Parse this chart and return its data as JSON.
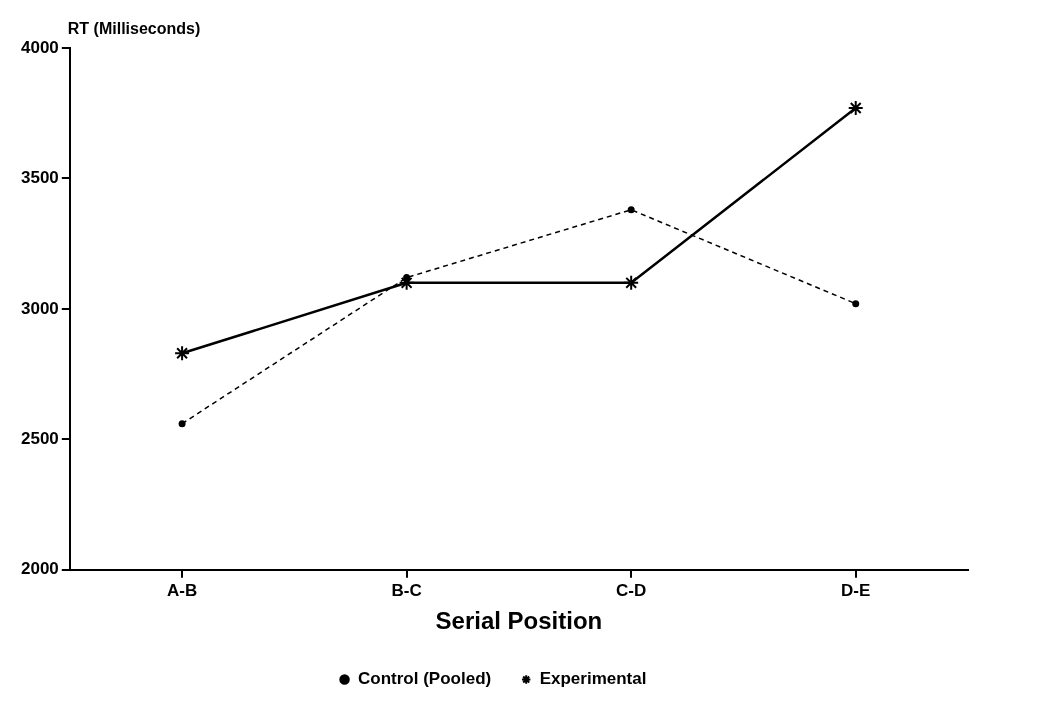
{
  "chart_data": {
    "type": "line",
    "xlabel": "Serial Position",
    "ylabel": "RT (Milliseconds)",
    "categories": [
      "A-B",
      "B-C",
      "C-D",
      "D-E"
    ],
    "series": [
      {
        "name": "Control (Pooled)",
        "color": "#000000",
        "values": [
          2560,
          3120,
          3380,
          3020
        ],
        "marker": "circle",
        "line_style": "dashed"
      },
      {
        "name": "Experimental",
        "color": "#000000",
        "values": [
          2830,
          3100,
          3100,
          3770
        ],
        "marker": "cross",
        "line_style": "solid"
      }
    ],
    "ylim": [
      2000,
      4000
    ],
    "yticks": [
      2000,
      2500,
      3000,
      3500,
      4000
    ],
    "grid": false,
    "legend": "bottom"
  }
}
